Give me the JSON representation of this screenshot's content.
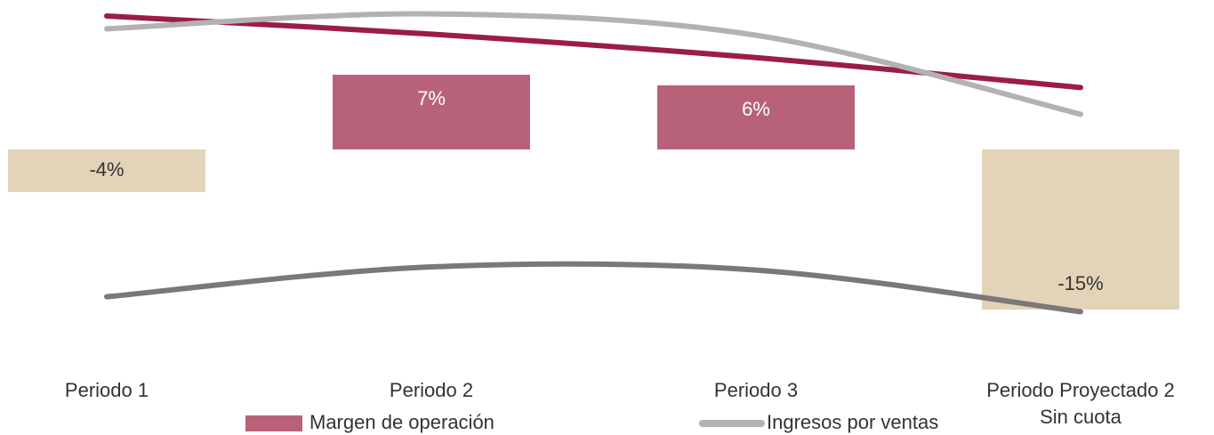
{
  "chart_data": {
    "type": "bar",
    "categories": [
      "Periodo 1",
      "Periodo 2",
      "Periodo 3",
      "Periodo Proyectado 2\nSin cuota"
    ],
    "series": [
      {
        "name": "Margen de operación",
        "color": "#b8627a",
        "colors": [
          "#e3d3b8",
          "#b8627a",
          "#b8627a",
          "#e3d3b8"
        ],
        "values": [
          -4,
          7,
          6,
          -15
        ],
        "value_labels": [
          "-4%",
          "7%",
          "6%",
          "-15%"
        ]
      },
      {
        "type": "line",
        "color": "#9b1c4a",
        "values": [
          12.5,
          10.8,
          8.6,
          5.8
        ]
      },
      {
        "name": "Ingresos por ventas",
        "type": "line",
        "color": "#b3b1b1",
        "values": [
          11.3,
          12.7,
          10.7,
          3.3
        ]
      },
      {
        "type": "line",
        "color": "#7a7878",
        "values": [
          -13.8,
          -11,
          -11.3,
          -15.2
        ]
      }
    ],
    "ylim": [
      -20,
      14
    ]
  }
}
